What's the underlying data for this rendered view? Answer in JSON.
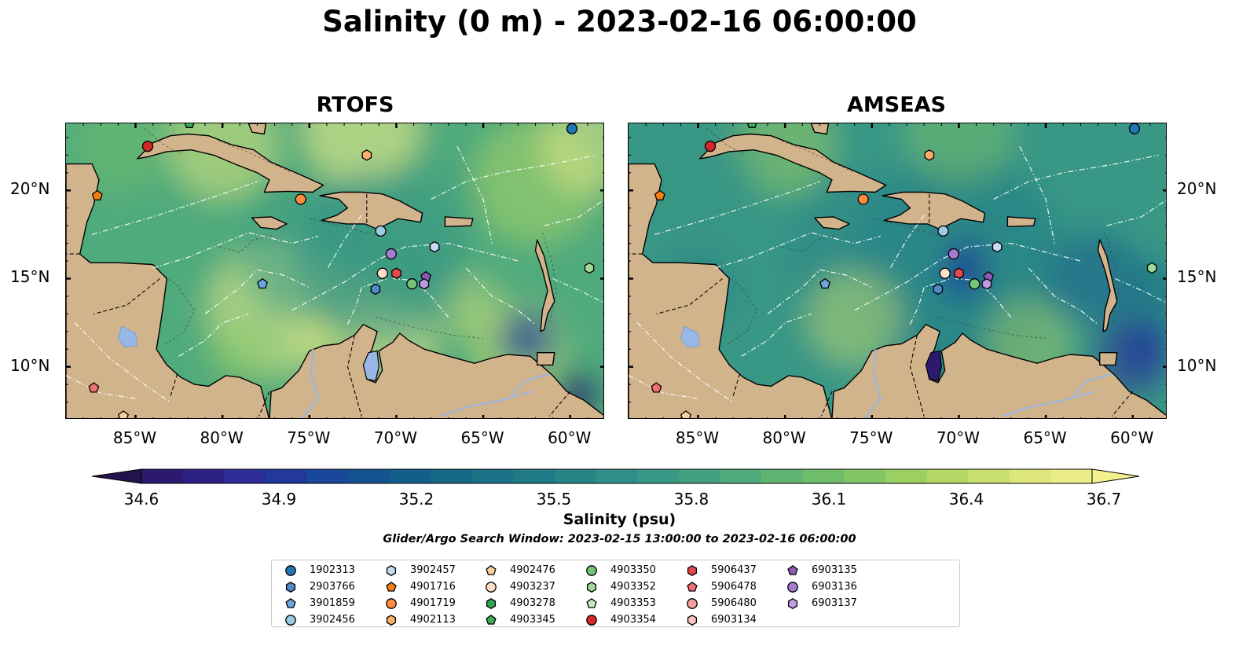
{
  "title": "Salinity (0 m) - 2023-02-16 06:00:00",
  "panels": [
    {
      "title": "RTOFS",
      "land_color": "#d2b48c",
      "western_ocean": "#2b1a6e",
      "lake_color": "#98b6e6"
    },
    {
      "title": "AMSEAS",
      "land_color": "#d2b48c",
      "western_ocean": "#98b6e6",
      "lake_color": "#2b1a6e"
    }
  ],
  "axes": {
    "lon_labels": [
      "85°W",
      "80°W",
      "75°W",
      "70°W",
      "65°W",
      "60°W"
    ],
    "lat_labels": [
      "20°N",
      "15°N",
      "10°N"
    ]
  },
  "colorbar": {
    "label": "Salinity (psu)",
    "min": 34.6,
    "max": 36.7,
    "extend": "both",
    "tick_labels": [
      "34.6",
      "34.9",
      "35.2",
      "35.5",
      "35.8",
      "36.1",
      "36.4",
      "36.7"
    ],
    "colors": [
      "#2b1a6e",
      "#2d2185",
      "#2b2c96",
      "#22399b",
      "#194799",
      "#145391",
      "#145e8b",
      "#166887",
      "#1b7186",
      "#217b86",
      "#288587",
      "#2f8e87",
      "#389785",
      "#43a081",
      "#50aa7b",
      "#5fb474",
      "#70bd6c",
      "#84c665",
      "#9bcf62",
      "#b2d765",
      "#c9df6e",
      "#dde67b",
      "#ebec8a"
    ]
  },
  "search_window": "Glider/Argo Search Window: 2023-02-15 13:00:00 to 2023-02-16 06:00:00",
  "legend": [
    {
      "id": "1902313",
      "marker": "circle",
      "color": "#1f77b4"
    },
    {
      "id": "2903766",
      "marker": "hexagon",
      "color": "#4f8bc9"
    },
    {
      "id": "3901859",
      "marker": "pentagon",
      "color": "#6aa7dd"
    },
    {
      "id": "3902456",
      "marker": "circle",
      "color": "#9ecae1"
    },
    {
      "id": "3902457",
      "marker": "hexagon",
      "color": "#c6dbef"
    },
    {
      "id": "4901716",
      "marker": "pentagon",
      "color": "#f57f17"
    },
    {
      "id": "4901719",
      "marker": "circle",
      "color": "#fd8d3c"
    },
    {
      "id": "4902113",
      "marker": "hexagon",
      "color": "#fdae6b"
    },
    {
      "id": "4902476",
      "marker": "pentagon",
      "color": "#fdd0a2"
    },
    {
      "id": "4903237",
      "marker": "circle",
      "color": "#fee0c8"
    },
    {
      "id": "4903278",
      "marker": "hexagon",
      "color": "#31a354"
    },
    {
      "id": "4903345",
      "marker": "pentagon",
      "color": "#41ab5d"
    },
    {
      "id": "4903350",
      "marker": "circle",
      "color": "#74c476"
    },
    {
      "id": "4903352",
      "marker": "hexagon",
      "color": "#a1d99b"
    },
    {
      "id": "4903353",
      "marker": "pentagon",
      "color": "#c7e9c0"
    },
    {
      "id": "4903354",
      "marker": "circle",
      "color": "#d62728"
    },
    {
      "id": "5906437",
      "marker": "hexagon",
      "color": "#e5484d"
    },
    {
      "id": "5906478",
      "marker": "pentagon",
      "color": "#ef6f73"
    },
    {
      "id": "5906480",
      "marker": "circle",
      "color": "#f4a09c"
    },
    {
      "id": "6903134",
      "marker": "hexagon",
      "color": "#fcc5c0"
    },
    {
      "id": "6903135",
      "marker": "pentagon",
      "color": "#8e5ab5"
    },
    {
      "id": "6903136",
      "marker": "circle",
      "color": "#a77bd0"
    },
    {
      "id": "6903137",
      "marker": "hexagon",
      "color": "#bf9be3"
    }
  ],
  "floats": [
    {
      "id": "4903354",
      "lon": -84.3,
      "lat": 22.5
    },
    {
      "id": "4901716",
      "lon": -87.2,
      "lat": 19.7
    },
    {
      "id": "1902313",
      "lon": -59.9,
      "lat": 23.5
    },
    {
      "id": "4903345",
      "lon": -81.9,
      "lat": 23.8
    },
    {
      "id": "4902113",
      "lon": -71.7,
      "lat": 22.0
    },
    {
      "id": "4901719",
      "lon": -75.5,
      "lat": 19.5
    },
    {
      "id": "3902456",
      "lon": -70.9,
      "lat": 17.7
    },
    {
      "id": "3902457",
      "lon": -67.8,
      "lat": 16.8
    },
    {
      "id": "6903136",
      "lon": -70.3,
      "lat": 16.4
    },
    {
      "id": "4903237",
      "lon": -70.8,
      "lat": 15.3
    },
    {
      "id": "5906437",
      "lon": -70.0,
      "lat": 15.3
    },
    {
      "id": "6903135",
      "lon": -68.3,
      "lat": 15.1
    },
    {
      "id": "6903137",
      "lon": -68.4,
      "lat": 14.7
    },
    {
      "id": "4903350",
      "lon": -69.1,
      "lat": 14.7
    },
    {
      "id": "2903766",
      "lon": -71.2,
      "lat": 14.4
    },
    {
      "id": "3901859",
      "lon": -77.7,
      "lat": 14.7
    },
    {
      "id": "4903352",
      "lon": -58.9,
      "lat": 15.6
    },
    {
      "id": "5906478",
      "lon": -87.4,
      "lat": 8.8
    },
    {
      "id": "4902476",
      "lon": -85.7,
      "lat": 7.2
    }
  ]
}
